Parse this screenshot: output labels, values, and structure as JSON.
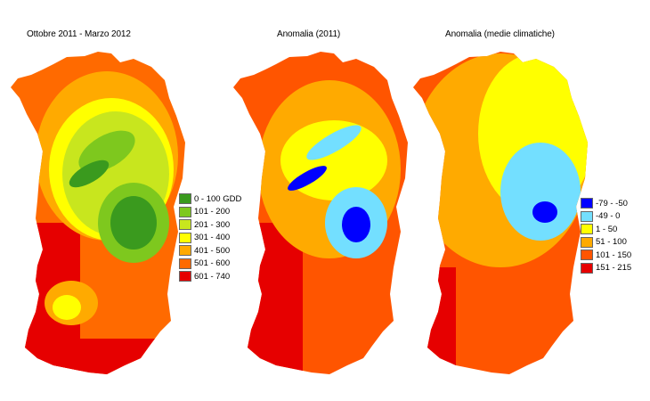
{
  "titles": {
    "map1": "Ottobre 2011 - Marzo 2012",
    "map2": "Anomalia (2011)",
    "map3": "Anomalia (medie climatiche)"
  },
  "legend_gdd": [
    {
      "label": "0 - 100 GDD",
      "color": "#3a9a1e"
    },
    {
      "label": "101 - 200",
      "color": "#7ec81e"
    },
    {
      "label": "201 - 300",
      "color": "#c8e61e"
    },
    {
      "label": "301 - 400",
      "color": "#ffff00"
    },
    {
      "label": "401 - 500",
      "color": "#ffaa00"
    },
    {
      "label": "501 - 600",
      "color": "#ff6a00"
    },
    {
      "label": "601 - 740",
      "color": "#e60000"
    }
  ],
  "legend_anomaly": [
    {
      "label": "-79 - -50",
      "color": "#0000ff"
    },
    {
      "label": "-49 - 0",
      "color": "#73dfff"
    },
    {
      "label": "1 - 50",
      "color": "#ffff00"
    },
    {
      "label": "51 - 100",
      "color": "#ffaa00"
    },
    {
      "label": "101 - 150",
      "color": "#ff5500"
    },
    {
      "label": "151 - 215",
      "color": "#e60000"
    }
  ]
}
